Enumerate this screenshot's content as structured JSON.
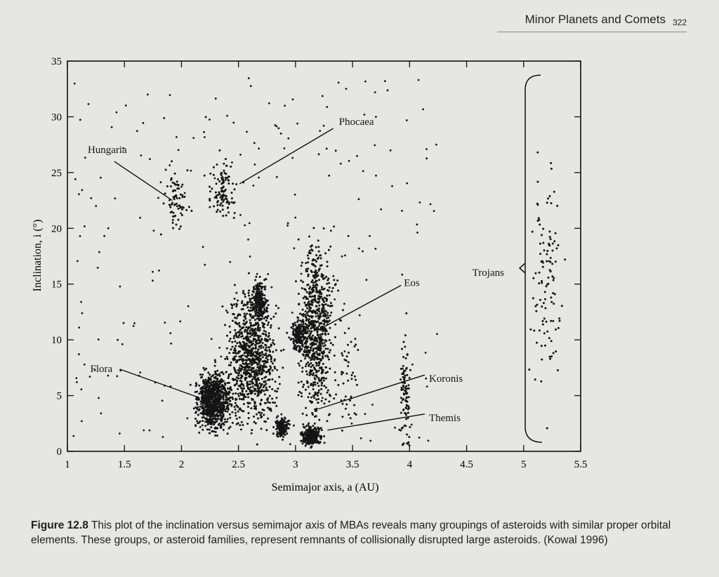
{
  "header": {
    "title": "Minor Planets and Comets",
    "page_number": "322"
  },
  "caption": {
    "lead": "Figure 12.8",
    "text": "This plot of the inclination versus semimajor axis of MBAs reveals many groupings of asteroids with similar proper orbital elements. These groups, or asteroid families, represent remnants of collisionally disrupted large asteroids. (Kowal 1996)"
  },
  "chart_data": {
    "type": "scatter",
    "title": "",
    "xlabel": "Semimajor axis, a (AU)",
    "ylabel": "Inclination, i (°)",
    "xlim": [
      1,
      5.5
    ],
    "ylim": [
      0,
      35
    ],
    "x_ticks": [
      "1",
      "1.5",
      "2",
      "2.5",
      "3",
      "3.5",
      "4",
      "4.5",
      "5",
      "5.5"
    ],
    "y_ticks": [
      "0",
      "5",
      "10",
      "15",
      "20",
      "25",
      "30",
      "35"
    ],
    "grid": false,
    "marker_color": "#141414",
    "groups": [
      {
        "name": "Hungaria",
        "a_center": 1.95,
        "a_spread": 0.05,
        "i_center": 22.5,
        "i_spread": 2.5,
        "count": 70
      },
      {
        "name": "Phocaea",
        "a_center": 2.36,
        "a_spread": 0.05,
        "i_center": 23.5,
        "i_spread": 2.2,
        "count": 110
      },
      {
        "name": "Flora",
        "a_center": 2.28,
        "a_spread": 0.07,
        "i_center": 4.5,
        "i_spread": 2.2,
        "count": 850
      },
      {
        "name": "Eos",
        "a_center": 3.02,
        "a_spread": 0.03,
        "i_center": 10.5,
        "i_spread": 1.2,
        "count": 150
      },
      {
        "name": "Koronis",
        "a_center": 2.88,
        "a_spread": 0.03,
        "i_center": 2.2,
        "i_spread": 0.8,
        "count": 140
      },
      {
        "name": "Themis",
        "a_center": 3.14,
        "a_spread": 0.04,
        "i_center": 1.4,
        "i_spread": 0.8,
        "count": 260
      },
      {
        "name": "Trojans",
        "a_center": 5.2,
        "a_spread": 0.06,
        "i_center": 15,
        "i_spread": 8.5,
        "count": 110
      },
      {
        "name": "",
        "a_center": 2.62,
        "a_spread": 0.1,
        "i_center": 8.5,
        "i_spread": 5,
        "count": 900
      },
      {
        "name": "",
        "a_center": 2.68,
        "a_spread": 0.03,
        "i_center": 13.5,
        "i_spread": 1.6,
        "count": 220
      },
      {
        "name": "",
        "a_center": 3.18,
        "a_spread": 0.07,
        "i_center": 11,
        "i_spread": 6.5,
        "count": 750
      },
      {
        "name": "",
        "a_center": 3.96,
        "a_spread": 0.02,
        "i_center": 5,
        "i_spread": 4.5,
        "count": 90
      },
      {
        "name": "",
        "a_center": 3.45,
        "a_spread": 0.05,
        "i_center": 8,
        "i_spread": 5,
        "count": 50
      }
    ],
    "labels": [
      {
        "text": "Hungaria",
        "a": 1.92,
        "i": 22.5,
        "label_a": 1.35,
        "label_i": 26.5
      },
      {
        "text": "Phocaea",
        "a": 2.51,
        "i": 24,
        "label_a": 3.38,
        "label_i": 29.4
      },
      {
        "text": "Eos",
        "a": 3.22,
        "i": 11,
        "label_a": 3.95,
        "label_i": 15.2
      },
      {
        "text": "Flora",
        "a": 2.16,
        "i": 4.8,
        "label_a": 1.2,
        "label_i": 7.5
      },
      {
        "text": "Koronis",
        "a": 3.2,
        "i": 3.8,
        "label_a": 4.17,
        "label_i": 6.6
      },
      {
        "text": "Themis",
        "a": 3.28,
        "i": 1.9,
        "label_a": 4.17,
        "label_i": 3.1
      },
      {
        "text": "Trojans",
        "a": 4.85,
        "i": 16.3,
        "label_a": 4.55,
        "label_i": 16.1
      }
    ]
  }
}
